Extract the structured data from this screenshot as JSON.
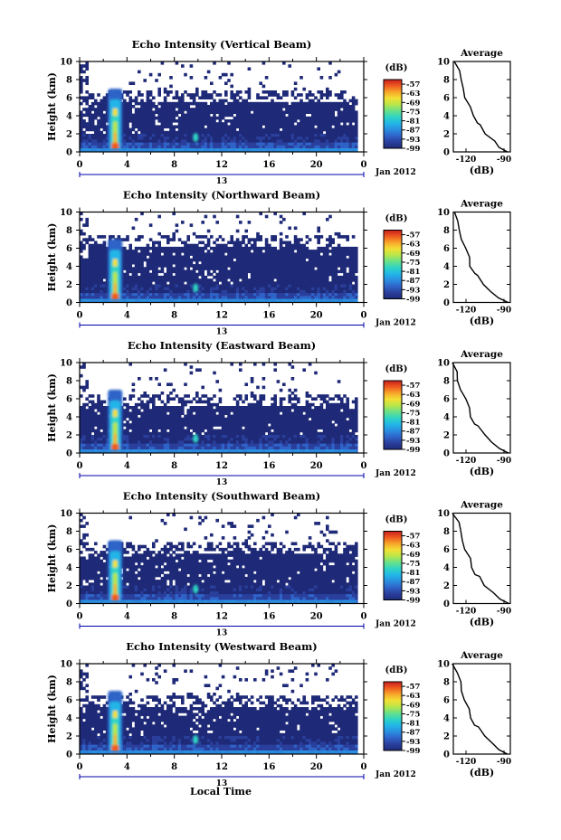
{
  "chart_data": [
    {
      "type": "heatmap",
      "title": "Echo Intensity (Vertical Beam)",
      "ylabel": "Height (km)",
      "x_ticks": [
        "0",
        "4",
        "8",
        "12",
        "16",
        "20",
        "0"
      ],
      "y_ticks": [
        "0",
        "2",
        "4",
        "6",
        "8",
        "10"
      ],
      "xlim": [
        0,
        24
      ],
      "ylim": [
        0,
        10
      ],
      "date_label": "Jan 2012",
      "colorbar_unit": "(dB)",
      "colorbar_ticks": [
        "-57",
        "-63",
        "-69",
        "-75",
        "-81",
        "-87",
        "-93",
        "-99"
      ],
      "clim": [
        -99,
        -54
      ],
      "echo_top_km": 6.5,
      "plume": {
        "hour": 3.0,
        "top_km": 7.0
      },
      "profile": {
        "title": "Average",
        "xlabel": "(dB)",
        "x_ticks": [
          "-120",
          "-90"
        ],
        "y_ticks": [
          "0",
          "2",
          "4",
          "6",
          "8",
          "10"
        ],
        "xlim": [
          -130,
          -85
        ],
        "ylim": [
          0,
          10
        ],
        "x": [
          -130,
          -126,
          -124,
          -123,
          -120,
          -117,
          -115,
          -111,
          -109,
          -105,
          -98,
          -94,
          -87
        ],
        "y": [
          10,
          9,
          8,
          7,
          6,
          5,
          4,
          3.2,
          3,
          2,
          1.2,
          0.5,
          0
        ]
      }
    },
    {
      "type": "heatmap",
      "title": "Echo Intensity (Northward Beam)",
      "ylabel": "Height (km)",
      "x_ticks": [
        "0",
        "4",
        "8",
        "12",
        "16",
        "20",
        "0"
      ],
      "y_ticks": [
        "0",
        "2",
        "4",
        "6",
        "8",
        "10"
      ],
      "xlim": [
        0,
        24
      ],
      "ylim": [
        0,
        10
      ],
      "date_label": "Jan 2012",
      "colorbar_unit": "(dB)",
      "colorbar_ticks": [
        "-57",
        "-63",
        "-69",
        "-75",
        "-81",
        "-87",
        "-93",
        "-99"
      ],
      "clim": [
        -99,
        -54
      ],
      "echo_top_km": 7.0,
      "plume": {
        "hour": 3.0,
        "top_km": 7.0
      },
      "profile": {
        "title": "Average",
        "xlabel": "(dB)",
        "x_ticks": [
          "-120",
          "-90"
        ],
        "y_ticks": [
          "0",
          "2",
          "4",
          "6",
          "8",
          "10"
        ],
        "xlim": [
          -130,
          -85
        ],
        "ylim": [
          0,
          10
        ],
        "x": [
          -130,
          -127,
          -125,
          -124,
          -121,
          -118,
          -116,
          -113,
          -110,
          -106,
          -100,
          -94,
          -87
        ],
        "y": [
          10,
          9,
          8,
          7,
          6,
          5,
          4,
          3.2,
          3,
          2,
          1.2,
          0.5,
          0
        ]
      }
    },
    {
      "type": "heatmap",
      "title": "Echo Intensity (Eastward Beam)",
      "ylabel": "Height (km)",
      "x_ticks": [
        "0",
        "4",
        "8",
        "12",
        "16",
        "20",
        "0"
      ],
      "y_ticks": [
        "0",
        "2",
        "4",
        "6",
        "8",
        "10"
      ],
      "xlim": [
        0,
        24
      ],
      "ylim": [
        0,
        10
      ],
      "date_label": "Jan 2012",
      "colorbar_unit": "(dB)",
      "colorbar_ticks": [
        "-57",
        "-63",
        "-69",
        "-75",
        "-81",
        "-87",
        "-93",
        "-99"
      ],
      "clim": [
        -99,
        -54
      ],
      "echo_top_km": 6.0,
      "plume": {
        "hour": 3.0,
        "top_km": 7.0
      },
      "profile": {
        "title": "Average",
        "xlabel": "(dB)",
        "x_ticks": [
          "-120",
          "-90"
        ],
        "y_ticks": [
          "0",
          "2",
          "4",
          "6",
          "8",
          "10"
        ],
        "xlim": [
          -130,
          -85
        ],
        "ylim": [
          0,
          10
        ],
        "x": [
          -130,
          -127,
          -126,
          -124,
          -121,
          -118,
          -116,
          -113,
          -110,
          -106,
          -99,
          -94,
          -87
        ],
        "y": [
          10,
          9,
          8,
          7,
          6,
          5,
          4,
          3.2,
          3,
          2,
          1.2,
          0.5,
          0
        ]
      }
    },
    {
      "type": "heatmap",
      "title": "Echo Intensity (Southward Beam)",
      "ylabel": "Height (km)",
      "x_ticks": [
        "0",
        "4",
        "8",
        "12",
        "16",
        "20",
        "0"
      ],
      "y_ticks": [
        "0",
        "2",
        "4",
        "6",
        "8",
        "10"
      ],
      "xlim": [
        0,
        24
      ],
      "ylim": [
        0,
        10
      ],
      "date_label": "Jan 2012",
      "colorbar_unit": "(dB)",
      "colorbar_ticks": [
        "-57",
        "-63",
        "-69",
        "-75",
        "-81",
        "-87",
        "-93",
        "-99"
      ],
      "clim": [
        -99,
        -54
      ],
      "echo_top_km": 6.5,
      "plume": {
        "hour": 3.0,
        "top_km": 7.0
      },
      "profile": {
        "title": "Average",
        "xlabel": "(dB)",
        "x_ticks": [
          "-120",
          "-90"
        ],
        "y_ticks": [
          "0",
          "2",
          "4",
          "6",
          "8",
          "10"
        ],
        "xlim": [
          -130,
          -85
        ],
        "ylim": [
          0,
          10
        ],
        "x": [
          -130,
          -126,
          -124,
          -123,
          -120,
          -117,
          -115,
          -112,
          -109,
          -105,
          -98,
          -93,
          -87
        ],
        "y": [
          10,
          9,
          8,
          7,
          6,
          5,
          4,
          3.2,
          3,
          2,
          1.2,
          0.5,
          0
        ]
      }
    },
    {
      "type": "heatmap",
      "title": "Echo Intensity (Westward Beam)",
      "ylabel": "Height (km)",
      "xlabel": "Local Time",
      "x_ticks": [
        "0",
        "4",
        "8",
        "12",
        "16",
        "20",
        "0"
      ],
      "y_ticks": [
        "0",
        "2",
        "4",
        "6",
        "8",
        "10"
      ],
      "xlim": [
        0,
        24
      ],
      "ylim": [
        0,
        10
      ],
      "date_label": "Jan 2012",
      "colorbar_unit": "(dB)",
      "colorbar_ticks": [
        "-57",
        "-63",
        "-69",
        "-75",
        "-81",
        "-87",
        "-93",
        "-99"
      ],
      "clim": [
        -99,
        -54
      ],
      "echo_top_km": 6.0,
      "plume": {
        "hour": 3.0,
        "top_km": 7.0
      },
      "profile": {
        "title": "Average",
        "xlabel": "(dB)",
        "x_ticks": [
          "-120",
          "-90"
        ],
        "y_ticks": [
          "0",
          "2",
          "4",
          "6",
          "8",
          "10"
        ],
        "xlim": [
          -130,
          -85
        ],
        "ylim": [
          0,
          10
        ],
        "x": [
          -130,
          -127,
          -125,
          -124,
          -121,
          -118,
          -116,
          -113,
          -110,
          -106,
          -99,
          -94,
          -87
        ],
        "y": [
          10,
          9,
          8,
          7,
          6,
          5,
          4,
          3.2,
          3,
          2,
          1.2,
          0.5,
          0
        ]
      }
    }
  ],
  "day_marker": "13",
  "colormap": [
    "#1e2a78",
    "#2a3f9c",
    "#2f63c8",
    "#2a8fe0",
    "#22b6e8",
    "#2fd4c4",
    "#68e08a",
    "#b8e64a",
    "#f2e035",
    "#f7a72a",
    "#ef5a1f",
    "#c81e1e"
  ],
  "background_color": "#33347a"
}
